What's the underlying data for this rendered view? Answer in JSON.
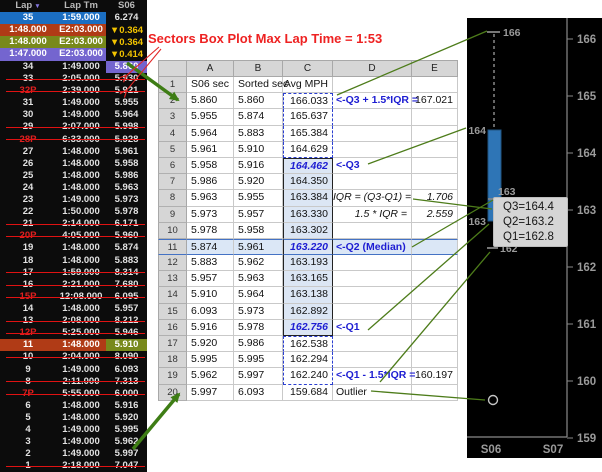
{
  "annotations": {
    "max_lap_note": "Sectors Box Plot Max Lap Time = 1:53"
  },
  "colors": {
    "band_blue": "#1b6ec2",
    "band_red": "#b03b16",
    "band_olive": "#78891b",
    "band_purple": "#7465cf",
    "delta_yellow": "#f2c300",
    "strike_red": "#e01212",
    "annotation_red": "#ee2222",
    "annotation_green": "#3e7d15",
    "box_fill_blue": "#2e75b6",
    "quartile_text_blue": "#1d1dd2",
    "range_fill_blue": "#dce6f4"
  },
  "timing_panel": {
    "columns": [
      "Lap",
      "Lap Tm",
      "S06"
    ],
    "sort_icon": "▼",
    "rows": [
      {
        "lap": "35",
        "lap_tm": "1:59.000",
        "s06": "6.274",
        "row_class": "band-blue"
      },
      {
        "lap": "1:48.000",
        "lap_tm": "E2:03.000",
        "s06": "▼0.364",
        "row_class": "band-red",
        "s06_class": "yellow"
      },
      {
        "lap": "1:48.000",
        "lap_tm": "E2:03.000",
        "s06": "▼0.364",
        "row_class": "band-olive",
        "s06_class": "yellow"
      },
      {
        "lap": "1:47.000",
        "lap_tm": "E2:03.000",
        "s06": "▼0.414",
        "row_class": "band-purple",
        "s06_class": "yellow"
      },
      {
        "lap": "34",
        "lap_tm": "1:49.000",
        "s06": "5.860",
        "s06_class": "cell-purple"
      },
      {
        "lap": "33",
        "lap_tm": "2:05.000",
        "s06": "5.930",
        "row_class": "struck"
      },
      {
        "lap": "32P",
        "lap_tm": "2:39.000",
        "s06": "5.921",
        "row_class": "struck",
        "lap_class": "pit"
      },
      {
        "lap": "31",
        "lap_tm": "1:49.000",
        "s06": "5.955"
      },
      {
        "lap": "30",
        "lap_tm": "1:49.000",
        "s06": "5.964"
      },
      {
        "lap": "29",
        "lap_tm": "2:07.000",
        "s06": "5.998",
        "row_class": "struck"
      },
      {
        "lap": "28P",
        "lap_tm": "6:33.000",
        "s06": "5.928",
        "row_class": "struck",
        "lap_class": "pit"
      },
      {
        "lap": "27",
        "lap_tm": "1:48.000",
        "s06": "5.961"
      },
      {
        "lap": "26",
        "lap_tm": "1:48.000",
        "s06": "5.958"
      },
      {
        "lap": "25",
        "lap_tm": "1:48.000",
        "s06": "5.986"
      },
      {
        "lap": "24",
        "lap_tm": "1:48.000",
        "s06": "5.963"
      },
      {
        "lap": "23",
        "lap_tm": "1:49.000",
        "s06": "5.973"
      },
      {
        "lap": "22",
        "lap_tm": "1:50.000",
        "s06": "5.978"
      },
      {
        "lap": "21",
        "lap_tm": "2:14.000",
        "s06": "6.171",
        "row_class": "struck"
      },
      {
        "lap": "20P",
        "lap_tm": "4:05.000",
        "s06": "5.960",
        "row_class": "struck",
        "lap_class": "pit"
      },
      {
        "lap": "19",
        "lap_tm": "1:48.000",
        "s06": "5.874"
      },
      {
        "lap": "18",
        "lap_tm": "1:48.000",
        "s06": "5.883"
      },
      {
        "lap": "17",
        "lap_tm": "1:59.000",
        "s06": "8.314",
        "row_class": "struck"
      },
      {
        "lap": "16",
        "lap_tm": "2:21.000",
        "s06": "7.680",
        "row_class": "struck"
      },
      {
        "lap": "15P",
        "lap_tm": "12:08.000",
        "s06": "6.095",
        "row_class": "struck",
        "lap_class": "pit"
      },
      {
        "lap": "14",
        "lap_tm": "1:48.000",
        "s06": "5.957"
      },
      {
        "lap": "13",
        "lap_tm": "2:08.000",
        "s06": "8.212",
        "row_class": "struck"
      },
      {
        "lap": "12P",
        "lap_tm": "5:25.000",
        "s06": "5.946",
        "row_class": "struck",
        "lap_class": "pit"
      },
      {
        "lap": "11",
        "lap_tm": "1:48.000",
        "s06": "5.910",
        "row_class": "band-red",
        "s06_class": "cell-olive"
      },
      {
        "lap": "10",
        "lap_tm": "2:04.000",
        "s06": "8.090",
        "row_class": "struck"
      },
      {
        "lap": "9",
        "lap_tm": "1:49.000",
        "s06": "6.093"
      },
      {
        "lap": "8",
        "lap_tm": "2:11.000",
        "s06": "7.313",
        "row_class": "struck"
      },
      {
        "lap": "7P",
        "lap_tm": "5:55.000",
        "s06": "6.000",
        "row_class": "struck",
        "lap_class": "pit"
      },
      {
        "lap": "6",
        "lap_tm": "1:48.000",
        "s06": "5.916"
      },
      {
        "lap": "5",
        "lap_tm": "1:48.000",
        "s06": "5.920"
      },
      {
        "lap": "4",
        "lap_tm": "1:49.000",
        "s06": "5.995"
      },
      {
        "lap": "3",
        "lap_tm": "1:49.000",
        "s06": "5.962"
      },
      {
        "lap": "2",
        "lap_tm": "1:49.000",
        "s06": "5.997"
      },
      {
        "lap": "1",
        "lap_tm": "2:18.000",
        "s06": "7.047",
        "row_class": "struck"
      }
    ]
  },
  "spreadsheet": {
    "col_headers": [
      "A",
      "B",
      "C",
      "D",
      "E"
    ],
    "rows": [
      {
        "n": "1",
        "a": "S06 sec",
        "b": "Sorted sec",
        "c": "Avg MPH",
        "c_class": "ca-left"
      },
      {
        "n": "2",
        "a": "5.860",
        "b": "5.860",
        "c": "166.033",
        "c_class": "dt ds",
        "d": "<-Q3 + 1.5*IQR =",
        "d_class": "blue",
        "e": "167.021"
      },
      {
        "n": "3",
        "a": "5.955",
        "b": "5.874",
        "c": "165.637",
        "c_class": "ds"
      },
      {
        "n": "4",
        "a": "5.964",
        "b": "5.883",
        "c": "165.384",
        "c_class": "ds"
      },
      {
        "n": "5",
        "a": "5.961",
        "b": "5.910",
        "c": "164.629",
        "c_class": "ds db"
      },
      {
        "n": "6",
        "a": "5.958",
        "b": "5.916",
        "c": "164.462",
        "c_class": "bx bt q",
        "d": "<-Q3",
        "d_class": "blue"
      },
      {
        "n": "7",
        "a": "5.986",
        "b": "5.920",
        "c": "164.350",
        "c_class": "bx"
      },
      {
        "n": "8",
        "a": "5.963",
        "b": "5.955",
        "c": "163.384",
        "c_class": "bx",
        "d": "IQR = (Q3-Q1) =",
        "d_class": "it rt",
        "e": "1.706",
        "e_class": "it"
      },
      {
        "n": "9",
        "a": "5.973",
        "b": "5.957",
        "c": "163.330",
        "c_class": "bx",
        "d": "1.5 * IQR =",
        "d_class": "it rt",
        "e": "2.559",
        "e_class": "it"
      },
      {
        "n": "10",
        "a": "5.978",
        "b": "5.958",
        "c": "163.302",
        "c_class": "bx"
      },
      {
        "n": "11",
        "a": "5.874",
        "b": "5.961",
        "c": "163.220",
        "c_class": "bx q",
        "d": "<-Q2 (Median)",
        "d_class": "blue",
        "row_class": "hl"
      },
      {
        "n": "12",
        "a": "5.883",
        "b": "5.962",
        "c": "163.193",
        "c_class": "bx"
      },
      {
        "n": "13",
        "a": "5.957",
        "b": "5.963",
        "c": "163.165",
        "c_class": "bx"
      },
      {
        "n": "14",
        "a": "5.910",
        "b": "5.964",
        "c": "163.138",
        "c_class": "bx"
      },
      {
        "n": "15",
        "a": "6.093",
        "b": "5.973",
        "c": "162.892",
        "c_class": "bx"
      },
      {
        "n": "16",
        "a": "5.916",
        "b": "5.978",
        "c": "162.756",
        "c_class": "bx bb q",
        "d": "<-Q1",
        "d_class": "blue"
      },
      {
        "n": "17",
        "a": "5.920",
        "b": "5.986",
        "c": "162.538",
        "c_class": "dt ds"
      },
      {
        "n": "18",
        "a": "5.995",
        "b": "5.995",
        "c": "162.294",
        "c_class": "ds"
      },
      {
        "n": "19",
        "a": "5.962",
        "b": "5.997",
        "c": "162.240",
        "c_class": "ds db",
        "d": "<-Q1 - 1.5*IQR =",
        "d_class": "blue",
        "e": "160.197"
      },
      {
        "n": "20",
        "a": "5.997",
        "b": "6.093",
        "c": "159.684",
        "d": "Outlier"
      }
    ]
  },
  "chart_data": {
    "type": "boxplot",
    "title": "",
    "x_categories": [
      "S06",
      "S07"
    ],
    "y_ticks": [
      "166",
      "165",
      "164",
      "163",
      "162",
      "161",
      "160",
      "159"
    ],
    "ylim": [
      159,
      166.5
    ],
    "series": [
      {
        "name": "S06",
        "q3": 164.4,
        "median": 163.2,
        "q1": 162.8,
        "whisker_high": 166.033,
        "whisker_low": 162.24,
        "iqr": 1.706,
        "outliers": [
          159.684
        ],
        "values": [
          166.033,
          165.637,
          165.384,
          164.629,
          164.462,
          164.35,
          163.384,
          163.33,
          163.302,
          163.22,
          163.193,
          163.165,
          163.138,
          162.892,
          162.756,
          162.538,
          162.294,
          162.24,
          159.684
        ]
      }
    ],
    "point_labels": {
      "top": "166",
      "q3": "164",
      "median": "163",
      "q1": "163",
      "bottom": "162"
    },
    "tooltip": [
      "Q3=164.4",
      "Q2=163.2",
      "Q1=162.8"
    ]
  }
}
